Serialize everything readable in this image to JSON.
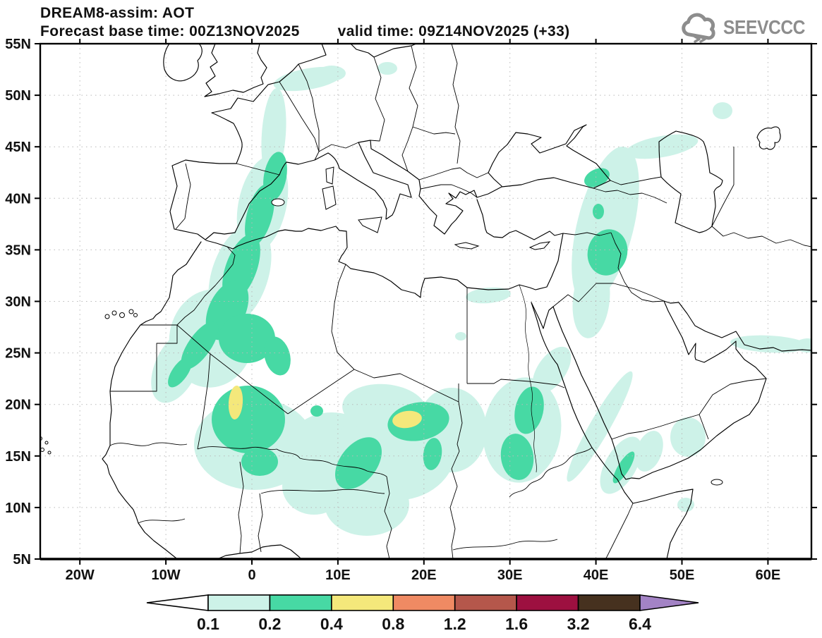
{
  "header": {
    "title": "DREAM8-assim: AOT",
    "subtitle_left": "Forecast base time: 00Z13NOV2025",
    "subtitle_right": "valid time: 09Z14NOV2025 (+33)",
    "logo_text": "SEEVCCC",
    "logo_color": "#8d8d8d"
  },
  "map": {
    "lat_labels": [
      "55N",
      "50N",
      "45N",
      "40N",
      "35N",
      "30N",
      "25N",
      "20N",
      "15N",
      "10N",
      "5N"
    ],
    "lat_values": [
      55,
      50,
      45,
      40,
      35,
      30,
      25,
      20,
      15,
      10,
      5
    ],
    "lon_labels": [
      "20W",
      "10W",
      "0",
      "10E",
      "20E",
      "30E",
      "40E",
      "50E",
      "60E"
    ],
    "lon_values": [
      -20,
      -10,
      0,
      10,
      20,
      30,
      40,
      50,
      60
    ],
    "grid_lat_step_deg": 5,
    "grid_lon_step_deg": 10
  },
  "legend": {
    "variable": "AOT",
    "values": [
      "0.1",
      "0.2",
      "0.4",
      "0.8",
      "1.2",
      "1.6",
      "3.2",
      "6.4"
    ],
    "colors": {
      "below": "#ffffff",
      "c1": "#cdf2e8",
      "c2": "#47d9a4",
      "c3": "#f4e87b",
      "c4": "#ef8a63",
      "c5": "#b5574b",
      "c6": "#9d1040",
      "c7": "#46311f",
      "above": "#a383c5"
    }
  },
  "aot_regions": [
    {
      "area": "NW Africa plume (Catalonia-Morocco-Mali)",
      "max_bin": "0.4-0.8",
      "peak": "0.4-0.8 over Mali ~20.5N 2W"
    },
    {
      "area": "Chad / Niger",
      "max_bin": "0.4-0.8",
      "peak": "0.4-0.8 near 18.5N 18E"
    },
    {
      "area": "Sudan ~30E 13-21N",
      "max_bin": "0.2-0.4"
    },
    {
      "area": "Southern Red Sea / Bab el Mandeb",
      "max_bin": "0.2-0.4"
    },
    {
      "area": "E Turkey - Syria - Iraq plume to Caucasus",
      "max_bin": "0.2-0.4"
    },
    {
      "area": "Belgium-Netherlands band, France corridor",
      "max_bin": "0.1-0.2"
    },
    {
      "area": "Gulf of Oman coast, SW Arabia, N Caspian spot",
      "max_bin": "0.1-0.2"
    }
  ]
}
